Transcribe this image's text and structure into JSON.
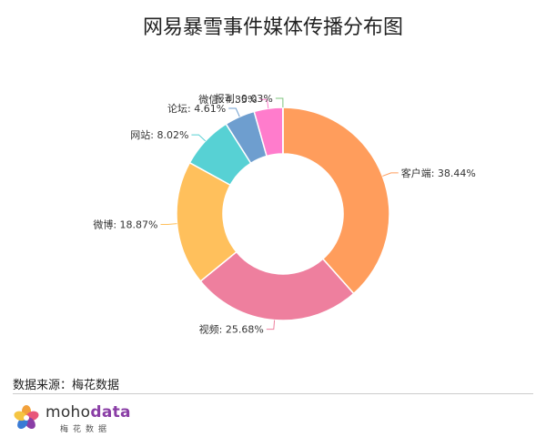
{
  "chart_data": {
    "type": "pie",
    "style": "donut",
    "title": "网易暴雪事件媒体传播分布图",
    "slices": [
      {
        "label": "客户端",
        "value": 38.44,
        "display": "客户端: 38.44%",
        "color": "#FF9D5C"
      },
      {
        "label": "视频",
        "value": 25.68,
        "display": "视频: 25.68%",
        "color": "#EE7F9E"
      },
      {
        "label": "微博",
        "value": 18.87,
        "display": "微博: 18.87%",
        "color": "#FFC05C"
      },
      {
        "label": "网站",
        "value": 8.02,
        "display": "网站: 8.02%",
        "color": "#57D1D4"
      },
      {
        "label": "论坛",
        "value": 4.61,
        "display": "论坛: 4.61%",
        "color": "#6E9ECF"
      },
      {
        "label": "微信",
        "value": 4.35,
        "display": "微信: 4.35%",
        "color": "#FF7CCC"
      },
      {
        "label": "报刊",
        "value": 0.03,
        "display": "报刊: 0.03%",
        "color": "#7DC47E"
      }
    ]
  },
  "footer": {
    "source": "数据来源：梅花数据",
    "brand_name_part1": "moho",
    "brand_name_part2": "data",
    "brand_tagline": "梅花数据",
    "logo_icon": "mohodata-flower-logo"
  }
}
